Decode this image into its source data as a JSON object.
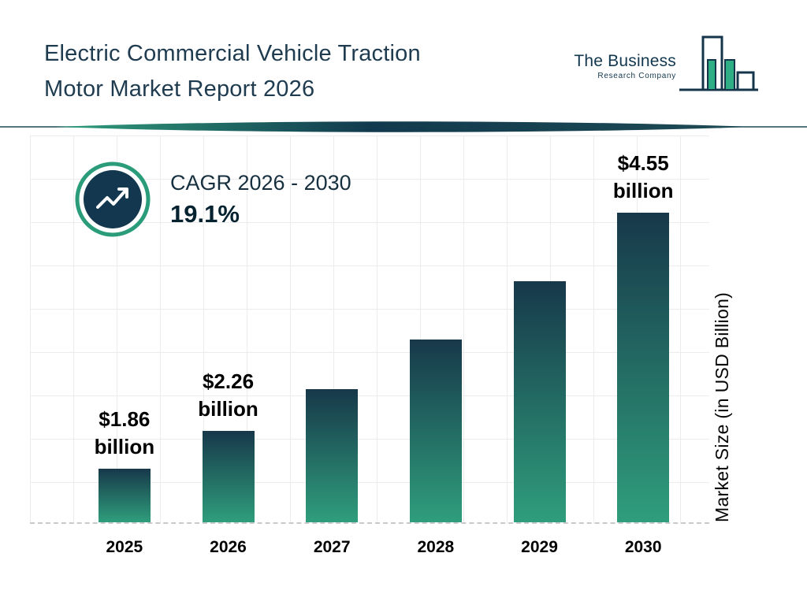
{
  "header": {
    "title_line1": "Electric Commercial Vehicle Traction",
    "title_line2": "Motor Market Report 2026"
  },
  "logo": {
    "line1": "The Business",
    "line2": "Research Company"
  },
  "cagr": {
    "label": "CAGR 2026 - 2030",
    "value": "19.1%"
  },
  "chart_data": {
    "type": "bar",
    "title": "Electric Commercial Vehicle Traction Motor Market Report 2026",
    "categories": [
      "2025",
      "2026",
      "2027",
      "2028",
      "2029",
      "2030"
    ],
    "values": [
      1.86,
      2.26,
      2.69,
      3.21,
      3.82,
      4.55
    ],
    "bar_labels": [
      {
        "amount": "$1.86",
        "unit": "billion"
      },
      {
        "amount": "$2.26",
        "unit": "billion"
      },
      null,
      null,
      null,
      {
        "amount": "$4.55",
        "unit": "billion"
      }
    ],
    "xlabel": "",
    "ylabel": "Market Size (in USD Billion)",
    "ylim": [
      1.3,
      5.2
    ],
    "grid": true,
    "legend": false,
    "cagr_label": "CAGR 2026 - 2030",
    "cagr_value": "19.1%",
    "colors": {
      "bar_gradient_top": "#17384a",
      "bar_gradient_bottom": "#2f9e7c",
      "accent_teal": "#2a9c7a",
      "dark_navy": "#12374e",
      "title_text": "#1e3b4f"
    }
  }
}
